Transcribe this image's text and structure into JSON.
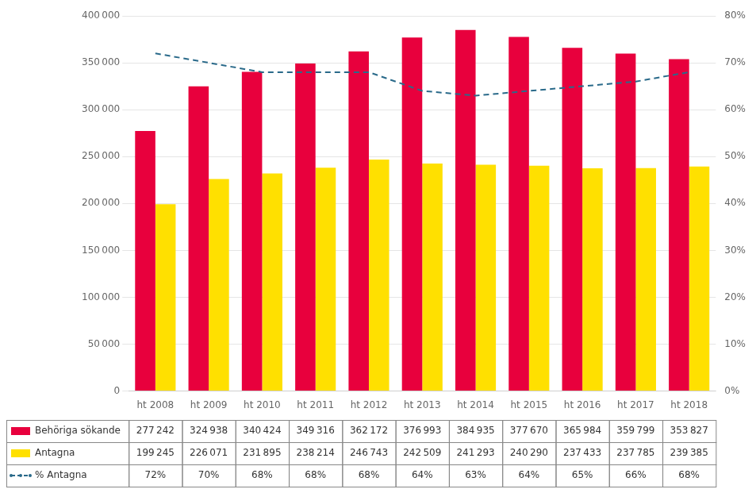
{
  "chart_data": {
    "type": "bar",
    "categories": [
      "ht 2008",
      "ht 2009",
      "ht 2010",
      "ht 2011",
      "ht 2012",
      "ht 2013",
      "ht 2014",
      "ht 2015",
      "ht 2016",
      "ht 2017",
      "ht 2018"
    ],
    "series": [
      {
        "name": "Behöriga sökande",
        "color": "#E8003D",
        "values": [
          277242,
          324938,
          340424,
          349316,
          362172,
          376993,
          384935,
          377670,
          365984,
          359799,
          353827
        ],
        "value_labels": [
          "277 242",
          "324 938",
          "340 424",
          "349 316",
          "362 172",
          "376 993",
          "384 935",
          "377 670",
          "365 984",
          "359 799",
          "353 827"
        ]
      },
      {
        "name": "Antagna",
        "color": "#FFE000",
        "values": [
          199245,
          226071,
          231895,
          238214,
          246743,
          242509,
          241293,
          240290,
          237433,
          237785,
          239385
        ],
        "value_labels": [
          "199 245",
          "226 071",
          "231 895",
          "238 214",
          "246 743",
          "242 509",
          "241 293",
          "240 290",
          "237 433",
          "237 785",
          "239 385"
        ]
      },
      {
        "name": "% Antagna",
        "type": "line",
        "line_style": "dashed",
        "color": "#2A6A8A",
        "axis": "y2",
        "values": [
          0.72,
          0.7,
          0.68,
          0.68,
          0.68,
          0.64,
          0.63,
          0.64,
          0.65,
          0.66,
          0.68
        ],
        "value_labels": [
          "72%",
          "70%",
          "68%",
          "68%",
          "68%",
          "64%",
          "63%",
          "64%",
          "65%",
          "66%",
          "68%"
        ]
      }
    ],
    "ylim": [
      0,
      400000
    ],
    "yticks": [
      0,
      {
        "value": 50000,
        "label": "50 000"
      },
      {
        "value": 100000,
        "label": "100 000"
      },
      {
        "value": 150000,
        "label": "150 000"
      },
      {
        "value": 200000,
        "label": "200 000"
      },
      {
        "value": 250000,
        "label": "250 000"
      },
      {
        "value": 300000,
        "label": "300 000"
      },
      {
        "value": 350000,
        "label": "350 000"
      },
      {
        "value": 400000,
        "label": "400 000"
      }
    ],
    "y2lim": [
      0,
      0.8
    ],
    "y2ticks": [
      {
        "value": 0.0,
        "label": "0%"
      },
      {
        "value": 0.1,
        "label": "10%"
      },
      {
        "value": 0.2,
        "label": "20%"
      },
      {
        "value": 0.3,
        "label": "30%"
      },
      {
        "value": 0.4,
        "label": "40%"
      },
      {
        "value": 0.5,
        "label": "50%"
      },
      {
        "value": 0.6,
        "label": "60%"
      },
      {
        "value": 0.7,
        "label": "70%"
      },
      {
        "value": 0.8,
        "label": "80%"
      }
    ],
    "grid": true,
    "data_labels": true
  }
}
